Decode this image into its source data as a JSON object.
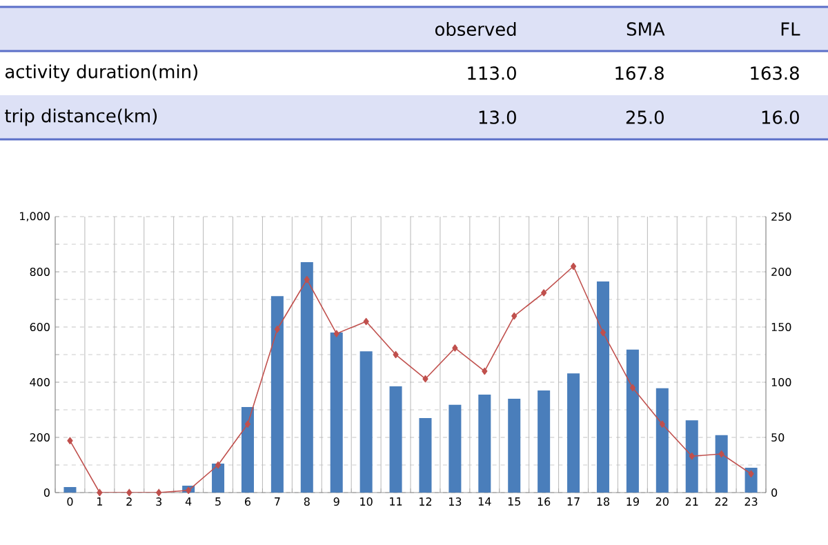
{
  "chart_data": [
    {
      "type": "other",
      "annotations": [
        "observed",
        "SMA",
        "FL",
        "activity duration(min)",
        "113.0",
        "167.8",
        "163.8",
        "trip distance(km)",
        "13.0",
        "25.0",
        "16.0"
      ]
    },
    {
      "type": "bar",
      "categories": [
        "0",
        "1",
        "2",
        "3",
        "4",
        "5",
        "6",
        "7",
        "8",
        "9",
        "10",
        "11",
        "12",
        "13",
        "14",
        "15",
        "16",
        "17",
        "18",
        "19",
        "20",
        "21",
        "22",
        "23"
      ],
      "series": [
        {
          "type": "bar",
          "color": "#4a7ebb",
          "values": [
            20,
            0,
            0,
            0,
            25,
            105,
            310,
            712,
            835,
            580,
            512,
            385,
            270,
            318,
            355,
            340,
            370,
            432,
            765,
            518,
            378,
            262,
            208,
            90
          ]
        },
        {
          "type": "line",
          "axis": "y2",
          "color": "#c0504d",
          "marker": "diamond",
          "values": [
            47,
            0,
            0,
            0,
            2,
            25,
            62,
            148,
            193,
            144,
            155,
            125,
            103,
            131,
            110,
            160,
            181,
            205,
            145,
            95,
            62,
            33,
            35,
            17
          ]
        }
      ],
      "ylim": [
        0,
        1000
      ],
      "yticks": [
        0,
        200,
        400,
        600,
        800,
        {
          "value": 1000,
          "label": "1,000"
        }
      ],
      "y2lim": [
        0,
        250
      ],
      "y2ticks": [
        0,
        50,
        100,
        150,
        200,
        250
      ],
      "grid": true
    }
  ]
}
